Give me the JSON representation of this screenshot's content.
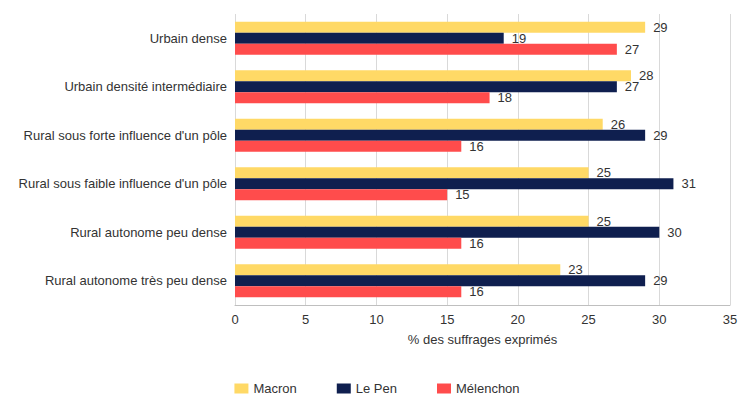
{
  "chart_data": {
    "type": "bar",
    "orientation": "horizontal",
    "x_label": "% des suffrages exprimés",
    "categories": [
      "Urbain dense",
      "Urbain densité intermédiaire",
      "Rural sous forte influence d'un pôle",
      "Rural sous faible influence d'un pôle",
      "Rural autonome peu dense",
      "Rural autonome très peu dense"
    ],
    "series": [
      {
        "name": "Macron",
        "color": "#FFD966",
        "values": [
          29,
          28,
          26,
          25,
          25,
          23
        ]
      },
      {
        "name": "Le Pen",
        "color": "#0F1F4F",
        "values": [
          19,
          27,
          29,
          31,
          30,
          29
        ]
      },
      {
        "name": "Mélenchon",
        "color": "#FF4C4C",
        "values": [
          27,
          18,
          16,
          15,
          16,
          16
        ]
      }
    ],
    "xlim": [
      0,
      35
    ],
    "xticks": [
      0,
      5,
      10,
      15,
      20,
      25,
      30,
      35
    ],
    "grid": true,
    "data_labels": true,
    "legend": "bottom"
  }
}
